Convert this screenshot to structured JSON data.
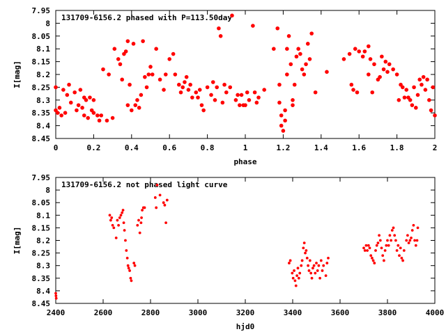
{
  "chart_data": [
    {
      "type": "scatter",
      "title": "131709-6156.2 phased with P=113.50day",
      "xlabel": "phase",
      "ylabel": "I[mag]",
      "xlim": [
        0,
        2
      ],
      "ylim": [
        7.95,
        8.45
      ],
      "y_inverted": true,
      "xticks": [
        "0",
        "0.2",
        "0.4",
        "0.6",
        "0.8",
        "1",
        "1.2",
        "1.4",
        "1.6",
        "1.8",
        "2"
      ],
      "yticks": [
        "7.95",
        "8",
        "8.05",
        "8.1",
        "8.15",
        "8.2",
        "8.25",
        "8.3",
        "8.35",
        "8.4",
        "8.45"
      ],
      "grid": false,
      "marker_color": "#ff0000",
      "points": [
        [
          0.0,
          8.25
        ],
        [
          0.0,
          8.34
        ],
        [
          0.01,
          8.35
        ],
        [
          0.02,
          8.33
        ],
        [
          0.03,
          8.36
        ],
        [
          0.04,
          8.26
        ],
        [
          0.05,
          8.35
        ],
        [
          0.06,
          8.28
        ],
        [
          0.07,
          8.24
        ],
        [
          0.08,
          8.31
        ],
        [
          0.1,
          8.27
        ],
        [
          0.11,
          8.34
        ],
        [
          0.12,
          8.32
        ],
        [
          0.13,
          8.26
        ],
        [
          0.14,
          8.33
        ],
        [
          0.15,
          8.29
        ],
        [
          0.15,
          8.36
        ],
        [
          0.16,
          8.3
        ],
        [
          0.17,
          8.37
        ],
        [
          0.18,
          8.29
        ],
        [
          0.19,
          8.34
        ],
        [
          0.2,
          8.35
        ],
        [
          0.2,
          8.3
        ],
        [
          0.22,
          8.36
        ],
        [
          0.23,
          8.38
        ],
        [
          0.24,
          8.36
        ],
        [
          0.25,
          8.18
        ],
        [
          0.27,
          8.38
        ],
        [
          0.28,
          8.2
        ],
        [
          0.3,
          8.37
        ],
        [
          0.31,
          8.1
        ],
        [
          0.33,
          8.14
        ],
        [
          0.34,
          8.16
        ],
        [
          0.35,
          8.22
        ],
        [
          0.36,
          8.12
        ],
        [
          0.37,
          8.11
        ],
        [
          0.38,
          8.07
        ],
        [
          0.38,
          8.32
        ],
        [
          0.39,
          8.24
        ],
        [
          0.4,
          8.34
        ],
        [
          0.41,
          8.08
        ],
        [
          0.42,
          8.32
        ],
        [
          0.43,
          8.3
        ],
        [
          0.44,
          8.33
        ],
        [
          0.45,
          8.28
        ],
        [
          0.46,
          8.07
        ],
        [
          0.47,
          8.21
        ],
        [
          0.48,
          8.25
        ],
        [
          0.49,
          8.2
        ],
        [
          0.5,
          8.17
        ],
        [
          0.51,
          8.2
        ],
        [
          0.53,
          8.1
        ],
        [
          0.55,
          8.22
        ],
        [
          0.57,
          8.26
        ],
        [
          0.58,
          8.2
        ],
        [
          0.6,
          8.14
        ],
        [
          0.62,
          8.12
        ],
        [
          0.63,
          8.2
        ],
        [
          0.65,
          8.24
        ],
        [
          0.66,
          8.27
        ],
        [
          0.67,
          8.25
        ],
        [
          0.68,
          8.23
        ],
        [
          0.69,
          8.21
        ],
        [
          0.7,
          8.26
        ],
        [
          0.71,
          8.24
        ],
        [
          0.72,
          8.29
        ],
        [
          0.74,
          8.27
        ],
        [
          0.75,
          8.29
        ],
        [
          0.76,
          8.26
        ],
        [
          0.77,
          8.32
        ],
        [
          0.78,
          8.34
        ],
        [
          0.8,
          8.25
        ],
        [
          0.82,
          8.28
        ],
        [
          0.83,
          8.23
        ],
        [
          0.84,
          8.3
        ],
        [
          0.85,
          8.25
        ],
        [
          0.86,
          8.02
        ],
        [
          0.87,
          8.05
        ],
        [
          0.88,
          8.31
        ],
        [
          0.89,
          8.24
        ],
        [
          0.9,
          8.27
        ],
        [
          0.92,
          8.25
        ],
        [
          0.93,
          7.97
        ],
        [
          0.95,
          8.3
        ],
        [
          0.96,
          8.28
        ],
        [
          0.97,
          8.32
        ],
        [
          0.98,
          8.28
        ],
        [
          0.99,
          8.32
        ],
        [
          1.0,
          8.32
        ],
        [
          1.01,
          8.27
        ],
        [
          1.02,
          8.3
        ],
        [
          1.04,
          8.01
        ],
        [
          1.05,
          8.27
        ],
        [
          1.06,
          8.31
        ],
        [
          1.07,
          8.29
        ],
        [
          1.1,
          8.26
        ],
        [
          1.15,
          8.1
        ],
        [
          1.17,
          8.02
        ],
        [
          1.18,
          8.24
        ],
        [
          1.18,
          8.31
        ],
        [
          1.19,
          8.36
        ],
        [
          1.19,
          8.4
        ],
        [
          1.2,
          8.42
        ],
        [
          1.21,
          8.34
        ],
        [
          1.21,
          8.38
        ],
        [
          1.22,
          8.1
        ],
        [
          1.22,
          8.2
        ],
        [
          1.23,
          8.05
        ],
        [
          1.24,
          8.16
        ],
        [
          1.25,
          8.32
        ],
        [
          1.25,
          8.3
        ],
        [
          1.26,
          8.24
        ],
        [
          1.27,
          8.13
        ],
        [
          1.28,
          8.1
        ],
        [
          1.29,
          8.12
        ],
        [
          1.3,
          8.18
        ],
        [
          1.31,
          8.2
        ],
        [
          1.32,
          8.16
        ],
        [
          1.33,
          8.08
        ],
        [
          1.34,
          8.14
        ],
        [
          1.35,
          8.04
        ],
        [
          1.37,
          8.27
        ],
        [
          1.43,
          8.19
        ],
        [
          1.52,
          8.14
        ],
        [
          1.55,
          8.12
        ],
        [
          1.56,
          8.24
        ],
        [
          1.57,
          8.26
        ],
        [
          1.58,
          8.1
        ],
        [
          1.59,
          8.27
        ],
        [
          1.6,
          8.11
        ],
        [
          1.62,
          8.13
        ],
        [
          1.63,
          8.11
        ],
        [
          1.65,
          8.2
        ],
        [
          1.65,
          8.09
        ],
        [
          1.66,
          8.14
        ],
        [
          1.67,
          8.27
        ],
        [
          1.68,
          8.16
        ],
        [
          1.7,
          8.22
        ],
        [
          1.71,
          8.21
        ],
        [
          1.72,
          8.13
        ],
        [
          1.73,
          8.18
        ],
        [
          1.74,
          8.15
        ],
        [
          1.75,
          8.19
        ],
        [
          1.76,
          8.16
        ],
        [
          1.78,
          8.18
        ],
        [
          1.8,
          8.2
        ],
        [
          1.81,
          8.3
        ],
        [
          1.82,
          8.24
        ],
        [
          1.83,
          8.25
        ],
        [
          1.84,
          8.29
        ],
        [
          1.85,
          8.26
        ],
        [
          1.86,
          8.29
        ],
        [
          1.87,
          8.3
        ],
        [
          1.88,
          8.32
        ],
        [
          1.89,
          8.25
        ],
        [
          1.9,
          8.33
        ],
        [
          1.91,
          8.28
        ],
        [
          1.92,
          8.22
        ],
        [
          1.93,
          8.24
        ],
        [
          1.94,
          8.21
        ],
        [
          1.95,
          8.26
        ],
        [
          1.96,
          8.22
        ],
        [
          1.97,
          8.3
        ],
        [
          1.98,
          8.34
        ],
        [
          1.99,
          8.25
        ],
        [
          2.0,
          8.36
        ]
      ]
    },
    {
      "type": "scatter",
      "title": "131709-6156.2 not phased light curve",
      "xlabel": "hjd0",
      "ylabel": "I[mag]",
      "xlim": [
        2400,
        4000
      ],
      "ylim": [
        7.95,
        8.45
      ],
      "y_inverted": true,
      "xticks": [
        "2400",
        "2600",
        "2800",
        "3000",
        "3200",
        "3400",
        "3600",
        "3800",
        "4000"
      ],
      "yticks": [
        "7.95",
        "8",
        "8.05",
        "8.1",
        "8.15",
        "8.2",
        "8.25",
        "8.3",
        "8.35",
        "8.4",
        "8.45"
      ],
      "grid": false,
      "marker_color": "#ff0000",
      "points": [
        [
          2400,
          8.41
        ],
        [
          2401,
          8.42
        ],
        [
          2402,
          8.43
        ],
        [
          2628,
          8.1
        ],
        [
          2632,
          8.12
        ],
        [
          2636,
          8.11
        ],
        [
          2640,
          8.14
        ],
        [
          2645,
          8.15
        ],
        [
          2655,
          8.19
        ],
        [
          2660,
          8.12
        ],
        [
          2665,
          8.14
        ],
        [
          2670,
          8.11
        ],
        [
          2675,
          8.1
        ],
        [
          2680,
          8.09
        ],
        [
          2684,
          8.08
        ],
        [
          2687,
          8.13
        ],
        [
          2690,
          8.16
        ],
        [
          2694,
          8.2
        ],
        [
          2698,
          8.24
        ],
        [
          2702,
          8.27
        ],
        [
          2705,
          8.3
        ],
        [
          2708,
          8.31
        ],
        [
          2712,
          8.32
        ],
        [
          2716,
          8.35
        ],
        [
          2719,
          8.36
        ],
        [
          2730,
          8.29
        ],
        [
          2734,
          8.3
        ],
        [
          2745,
          8.14
        ],
        [
          2750,
          8.12
        ],
        [
          2755,
          8.17
        ],
        [
          2760,
          8.13
        ],
        [
          2762,
          8.11
        ],
        [
          2765,
          8.08
        ],
        [
          2770,
          8.07
        ],
        [
          2775,
          8.07
        ],
        [
          2820,
          8.03
        ],
        [
          2824,
          8.07
        ],
        [
          2828,
          7.98
        ],
        [
          2840,
          8.02
        ],
        [
          2855,
          8.05
        ],
        [
          2860,
          8.06
        ],
        [
          2865,
          8.13
        ],
        [
          2870,
          8.04
        ],
        [
          3385,
          8.29
        ],
        [
          3390,
          8.28
        ],
        [
          3398,
          8.33
        ],
        [
          3402,
          8.35
        ],
        [
          3406,
          8.32
        ],
        [
          3410,
          8.36
        ],
        [
          3414,
          8.38
        ],
        [
          3418,
          8.34
        ],
        [
          3422,
          8.31
        ],
        [
          3426,
          8.35
        ],
        [
          3430,
          8.33
        ],
        [
          3436,
          8.3
        ],
        [
          3440,
          8.28
        ],
        [
          3445,
          8.23
        ],
        [
          3449,
          8.21
        ],
        [
          3453,
          8.25
        ],
        [
          3457,
          8.24
        ],
        [
          3461,
          8.27
        ],
        [
          3465,
          8.3
        ],
        [
          3469,
          8.32
        ],
        [
          3473,
          8.28
        ],
        [
          3477,
          8.33
        ],
        [
          3481,
          8.35
        ],
        [
          3485,
          8.31
        ],
        [
          3490,
          8.3
        ],
        [
          3495,
          8.33
        ],
        [
          3500,
          8.29
        ],
        [
          3505,
          8.32
        ],
        [
          3510,
          8.3
        ],
        [
          3515,
          8.35
        ],
        [
          3520,
          8.28
        ],
        [
          3525,
          8.32
        ],
        [
          3530,
          8.3
        ],
        [
          3540,
          8.34
        ],
        [
          3545,
          8.29
        ],
        [
          3550,
          8.27
        ],
        [
          3700,
          8.23
        ],
        [
          3705,
          8.24
        ],
        [
          3710,
          8.22
        ],
        [
          3715,
          8.24
        ],
        [
          3720,
          8.22
        ],
        [
          3725,
          8.23
        ],
        [
          3730,
          8.26
        ],
        [
          3735,
          8.27
        ],
        [
          3740,
          8.28
        ],
        [
          3745,
          8.29
        ],
        [
          3750,
          8.24
        ],
        [
          3755,
          8.22
        ],
        [
          3760,
          8.21
        ],
        [
          3765,
          8.18
        ],
        [
          3770,
          8.2
        ],
        [
          3775,
          8.23
        ],
        [
          3780,
          8.26
        ],
        [
          3785,
          8.28
        ],
        [
          3790,
          8.24
        ],
        [
          3795,
          8.22
        ],
        [
          3800,
          8.2
        ],
        [
          3805,
          8.22
        ],
        [
          3810,
          8.18
        ],
        [
          3815,
          8.2
        ],
        [
          3820,
          8.16
        ],
        [
          3825,
          8.15
        ],
        [
          3830,
          8.18
        ],
        [
          3835,
          8.2
        ],
        [
          3840,
          8.24
        ],
        [
          3845,
          8.22
        ],
        [
          3850,
          8.26
        ],
        [
          3855,
          8.23
        ],
        [
          3860,
          8.27
        ],
        [
          3865,
          8.28
        ],
        [
          3870,
          8.24
        ],
        [
          3880,
          8.2
        ],
        [
          3885,
          8.18
        ],
        [
          3890,
          8.21
        ],
        [
          3895,
          8.2
        ],
        [
          3900,
          8.19
        ],
        [
          3905,
          8.16
        ],
        [
          3910,
          8.14
        ],
        [
          3915,
          8.2
        ],
        [
          3920,
          8.22
        ],
        [
          3925,
          8.2
        ],
        [
          3928,
          8.15
        ]
      ]
    }
  ]
}
